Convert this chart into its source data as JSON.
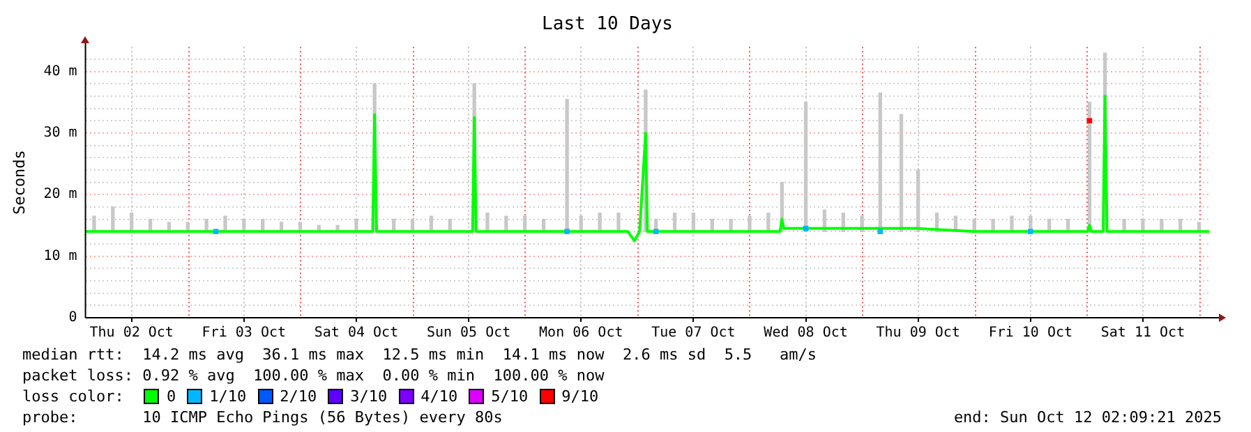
{
  "chart_data": {
    "type": "line",
    "title": "Last 10 Days",
    "ylabel": "Seconds",
    "legend_title": "loss color:",
    "legend": "bottom",
    "grid": true,
    "xlim": [
      "2025-10-02T02:09",
      "2025-10-12T02:09"
    ],
    "xticks": [
      {
        "value": "2025-10-02T12:00",
        "label": "Thu 02 Oct"
      },
      {
        "value": "2025-10-03T12:00",
        "label": "Fri 03 Oct"
      },
      {
        "value": "2025-10-04T12:00",
        "label": "Sat 04 Oct"
      },
      {
        "value": "2025-10-05T12:00",
        "label": "Sun 05 Oct"
      },
      {
        "value": "2025-10-06T12:00",
        "label": "Mon 06 Oct"
      },
      {
        "value": "2025-10-07T12:00",
        "label": "Tue 07 Oct"
      },
      {
        "value": "2025-10-08T12:00",
        "label": "Wed 08 Oct"
      },
      {
        "value": "2025-10-09T12:00",
        "label": "Thu 09 Oct"
      },
      {
        "value": "2025-10-10T12:00",
        "label": "Fri 10 Oct"
      },
      {
        "value": "2025-10-11T12:00",
        "label": "Sat 11 Oct"
      }
    ],
    "ref_lines": [
      {
        "axis": "x",
        "value": "2025-10-03",
        "color": "#ff5050",
        "line_style": "dotted"
      },
      {
        "axis": "x",
        "value": "2025-10-04",
        "color": "#ff5050",
        "line_style": "dotted"
      },
      {
        "axis": "x",
        "value": "2025-10-05",
        "color": "#ff5050",
        "line_style": "dotted"
      },
      {
        "axis": "x",
        "value": "2025-10-06",
        "color": "#ff5050",
        "line_style": "dotted"
      },
      {
        "axis": "x",
        "value": "2025-10-07",
        "color": "#ff5050",
        "line_style": "dotted"
      },
      {
        "axis": "x",
        "value": "2025-10-08",
        "color": "#ff5050",
        "line_style": "dotted"
      },
      {
        "axis": "x",
        "value": "2025-10-09",
        "color": "#ff5050",
        "line_style": "dotted"
      },
      {
        "axis": "x",
        "value": "2025-10-10",
        "color": "#ff5050",
        "line_style": "dotted"
      },
      {
        "axis": "x",
        "value": "2025-10-11",
        "color": "#ff5050",
        "line_style": "dotted"
      },
      {
        "axis": "x",
        "value": "2025-10-12",
        "color": "#ff5050",
        "line_style": "dotted"
      }
    ],
    "ylim": [
      0,
      44
    ],
    "yticks": [
      0,
      {
        "value": 2,
        "label": null
      },
      {
        "value": 4,
        "label": null
      },
      {
        "value": 6,
        "label": null
      },
      {
        "value": 8,
        "label": null
      },
      {
        "value": 10,
        "label": "10 m"
      },
      {
        "value": 12,
        "label": null
      },
      {
        "value": 14,
        "label": null
      },
      {
        "value": 16,
        "label": null
      },
      {
        "value": 18,
        "label": null
      },
      {
        "value": 20,
        "label": "20 m"
      },
      {
        "value": 22,
        "label": null
      },
      {
        "value": 24,
        "label": null
      },
      {
        "value": 26,
        "label": null
      },
      {
        "value": 28,
        "label": null
      },
      {
        "value": 30,
        "label": "30 m"
      },
      {
        "value": 32,
        "label": null
      },
      {
        "value": 34,
        "label": null
      },
      {
        "value": 36,
        "label": null
      },
      {
        "value": 38,
        "label": null
      },
      {
        "value": 40,
        "label": "40 m"
      },
      {
        "value": 42,
        "label": null
      }
    ],
    "series": [
      {
        "type": "bar",
        "color": "#c8c8c8",
        "x": [
          "2025-10-02T04:00",
          "2025-10-02T08:00",
          "2025-10-02T12:00",
          "2025-10-02T16:00",
          "2025-10-02T20:00",
          "2025-10-03T00:00",
          "2025-10-03T04:00",
          "2025-10-03T08:00",
          "2025-10-03T12:00",
          "2025-10-03T16:00",
          "2025-10-03T20:00",
          "2025-10-04T00:00",
          "2025-10-04T04:00",
          "2025-10-04T08:00",
          "2025-10-04T12:00",
          "2025-10-04T15:54",
          "2025-10-04T20:00",
          "2025-10-05T00:00",
          "2025-10-05T04:00",
          "2025-10-05T08:00",
          "2025-10-05T13:12",
          "2025-10-05T16:00",
          "2025-10-05T20:00",
          "2025-10-06T00:00",
          "2025-10-06T04:00",
          "2025-10-06T09:00",
          "2025-10-06T12:00",
          "2025-10-06T16:00",
          "2025-10-06T20:00",
          "2025-10-07T01:48",
          "2025-10-07T04:00",
          "2025-10-07T08:00",
          "2025-10-07T12:00",
          "2025-10-07T16:00",
          "2025-10-07T20:00",
          "2025-10-08T00:00",
          "2025-10-08T04:00",
          "2025-10-08T06:54",
          "2025-10-08T12:00",
          "2025-10-08T16:00",
          "2025-10-08T20:00",
          "2025-10-09T00:00",
          "2025-10-09T03:54",
          "2025-10-09T08:24",
          "2025-10-09T12:00",
          "2025-10-09T16:00",
          "2025-10-09T20:00",
          "2025-10-10T00:00",
          "2025-10-10T04:00",
          "2025-10-10T08:00",
          "2025-10-10T12:00",
          "2025-10-10T16:00",
          "2025-10-10T20:00",
          "2025-10-11T00:36",
          "2025-10-11T03:54",
          "2025-10-11T08:00",
          "2025-10-11T12:00",
          "2025-10-11T16:00",
          "2025-10-11T20:00",
          "2025-10-12T00:00"
        ],
        "base": [
          14,
          14,
          14,
          14,
          14,
          14,
          14,
          14,
          14,
          14,
          14,
          14,
          14,
          14,
          14,
          14,
          14,
          14,
          14,
          14,
          14,
          14,
          14,
          14,
          14,
          14,
          14,
          14,
          14,
          14,
          14,
          14,
          14,
          14,
          14,
          14,
          14,
          14,
          14,
          14,
          14,
          14,
          14,
          14,
          14,
          14,
          14,
          14,
          14,
          14,
          14,
          14,
          14,
          14,
          14,
          14,
          14,
          14,
          14,
          14
        ],
        "values": [
          2.5,
          4,
          3,
          2,
          1.5,
          1.5,
          2,
          2.5,
          2,
          2,
          1.5,
          1.5,
          1,
          1,
          2,
          24,
          2,
          2,
          2.5,
          2,
          24,
          3,
          2.5,
          2.5,
          2,
          21.5,
          2.5,
          3,
          3,
          23,
          2,
          3,
          3,
          2,
          2,
          2.5,
          3,
          8,
          21,
          3.5,
          3,
          2.5,
          22.5,
          19,
          10,
          3,
          2.5,
          2,
          2,
          2.5,
          2.5,
          2,
          2,
          21,
          29,
          2,
          2,
          2,
          2,
          1.5
        ]
      },
      {
        "name": "0",
        "color": "#00ff00",
        "x": [
          "2025-10-02T02:09",
          "2025-10-04T15:30",
          "2025-10-04T15:54",
          "2025-10-04T16:20",
          "2025-10-05T12:50",
          "2025-10-05T13:12",
          "2025-10-05T13:35",
          "2025-10-06T22:00",
          "2025-10-06T23:24",
          "2025-10-07T00:30",
          "2025-10-07T01:48",
          "2025-10-07T02:10",
          "2025-10-08T06:30",
          "2025-10-08T06:54",
          "2025-10-08T07:20",
          "2025-10-09T12:00",
          "2025-10-10T00:00",
          "2025-10-11T00:10",
          "2025-10-11T00:36",
          "2025-10-11T01:00",
          "2025-10-11T03:30",
          "2025-10-11T03:54",
          "2025-10-11T04:20",
          "2025-10-12T02:09"
        ],
        "values": [
          14,
          14,
          33,
          14,
          14,
          32.5,
          14,
          14,
          12.5,
          14,
          30,
          14,
          14,
          16,
          14.5,
          14.5,
          14,
          14,
          15,
          14,
          14,
          36,
          14,
          14
        ]
      },
      {
        "name": "1/10",
        "type": "scatter",
        "marker": "square",
        "color": "#00b8ff",
        "x": [
          "2025-10-03T06:00",
          "2025-10-06T09:00",
          "2025-10-07T04:00",
          "2025-10-08T12:00",
          "2025-10-09T03:54",
          "2025-10-10T12:00"
        ],
        "values": [
          14,
          14,
          14,
          14.5,
          14,
          14
        ]
      },
      {
        "name": "2/10",
        "color": "#0059ff"
      },
      {
        "name": "3/10",
        "color": "#5e00ff"
      },
      {
        "name": "4/10",
        "color": "#7e00ff"
      },
      {
        "name": "5/10",
        "color": "#dd00ff"
      },
      {
        "name": "9/10",
        "type": "scatter",
        "marker": "square",
        "color": "#ff0000",
        "x": [
          "2025-10-11T00:36"
        ],
        "values": [
          32
        ]
      }
    ],
    "annotations": [
      "median rtt:  14.2 ms avg  36.1 ms max  12.5 ms min  14.1 ms now  2.6 ms sd  5.5   am/s",
      "packet loss: 0.92 % avg  100.00 % max  0.00 % min  100.00 % now",
      "probe:       10 ICMP Echo Pings (56 Bytes) every 80s",
      "end: Sun Oct 12 02:09:21 2025"
    ]
  }
}
